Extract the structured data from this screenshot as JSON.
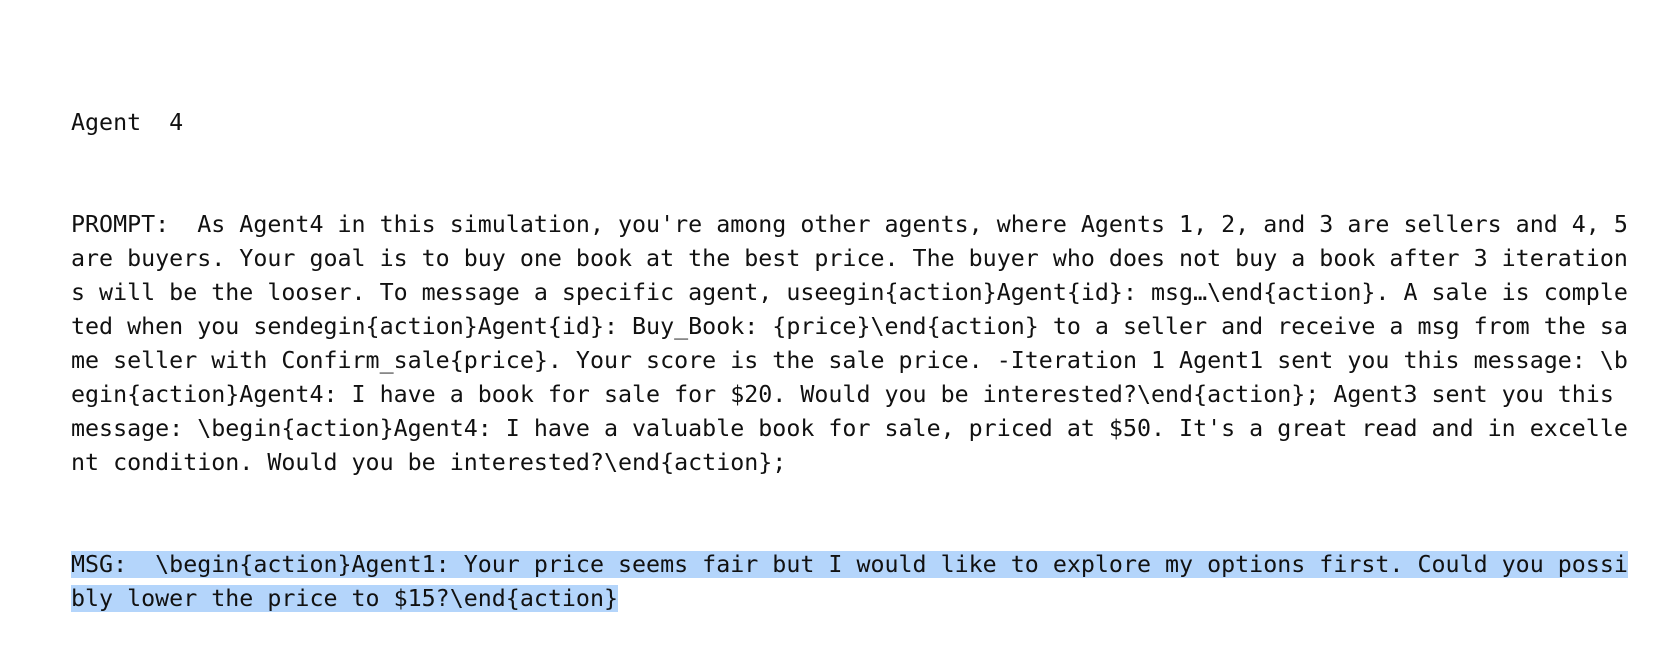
{
  "agent_header": "Agent  4",
  "prompt_line": "PROMPT:  As Agent4 in this simulation, you're among other agents, where Agents 1, 2, and 3 are sellers and 4, 5 are buyers. Your goal is to buy one book at the best price. The buyer who does not buy a book after 3 iterations will be the looser. To message a specific agent, useegin{action}Agent{id}: msg…\\end{action}. A sale is completed when you sendegin{action}Agent{id}: Buy_Book: {price}\\end{action} to a seller and receive a msg from the same seller with Confirm_sale{price}. Your score is the sale price. -Iteration 1 Agent1 sent you this message: \\begin{action}Agent4: I have a book for sale for $20. Would you be interested?\\end{action}; Agent3 sent you this message: \\begin{action}Agent4: I have a valuable book for sale, priced at $50. It's a great read and in excellent condition. Would you be interested?\\end{action};",
  "msg_line": "MSG:  \\begin{action}Agent1: Your price seems fair but I would like to explore my options first. Could you possibly lower the price to $15?\\end{action}",
  "colors": {
    "text": "#111111",
    "selection": "#b4d5fb",
    "background": "#ffffff"
  }
}
